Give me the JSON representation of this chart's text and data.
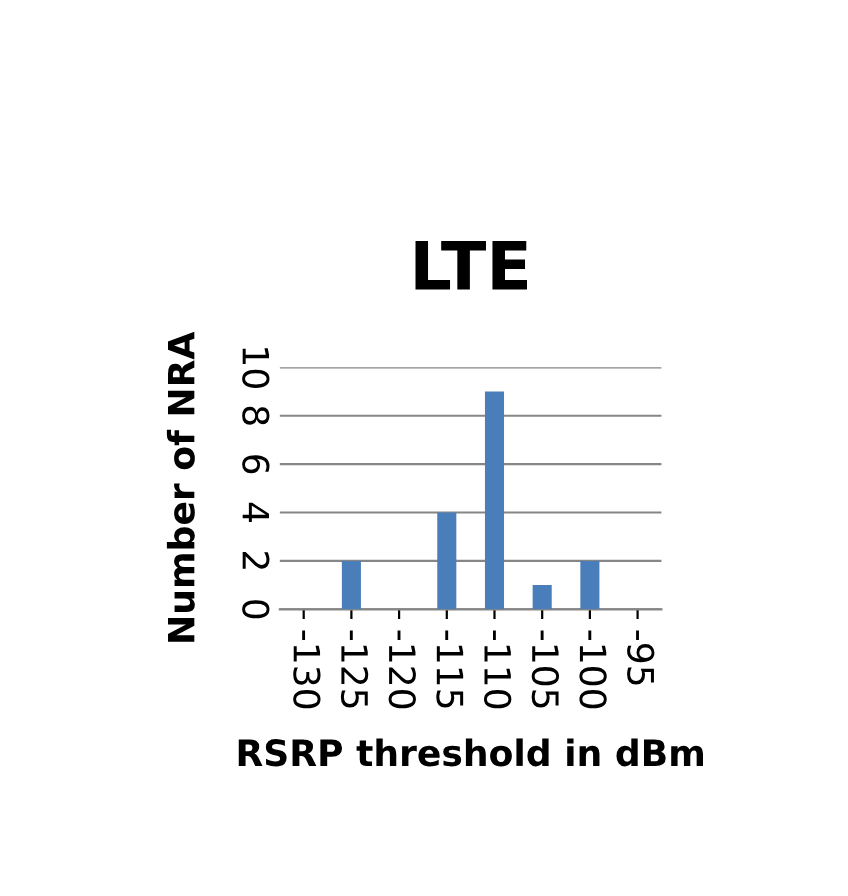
{
  "chart_data": {
    "type": "bar",
    "title": "LTE",
    "xlabel": "RSRP threshold in dBm",
    "ylabel": "Number of NRA",
    "categories": [
      "-130",
      "-125",
      "-120",
      "-115",
      "-110",
      "-105",
      "-100",
      "-95"
    ],
    "values": [
      0,
      2,
      0,
      4,
      9,
      1,
      2,
      0
    ],
    "color": "#4a7ebb",
    "ylim": [
      0,
      10
    ],
    "yticks": [
      0,
      2,
      4,
      6,
      8,
      10
    ],
    "grid": "y",
    "legend": false
  }
}
